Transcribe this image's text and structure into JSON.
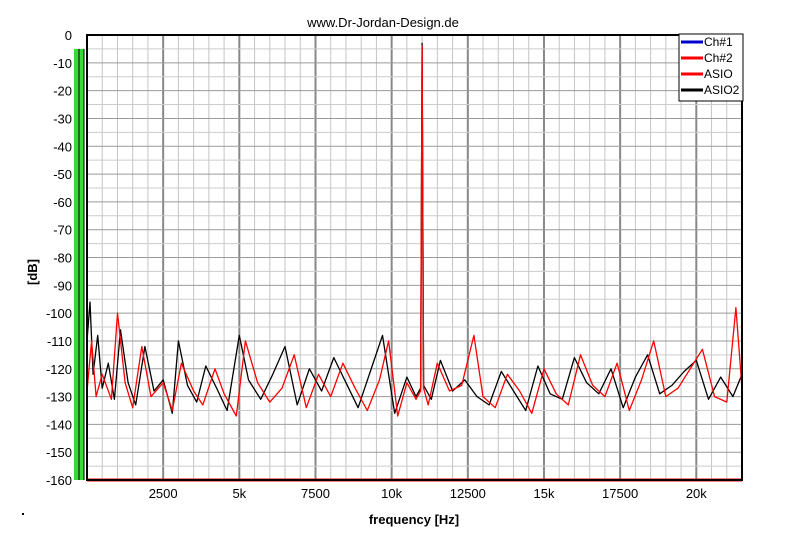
{
  "chart_data": {
    "type": "line",
    "title": "www.Dr-Jordan-Design.de",
    "xlabel": "frequency [Hz]",
    "ylabel": "[dB]",
    "xlim": [
      0,
      21500
    ],
    "ylim": [
      -160,
      0
    ],
    "x_ticks": [
      2500,
      5000,
      7500,
      10000,
      12500,
      15000,
      17500,
      20000
    ],
    "x_tick_labels": [
      "2500",
      "5k",
      "7500",
      "10k",
      "12500",
      "15k",
      "17500",
      "20k"
    ],
    "y_ticks": [
      0,
      -10,
      -20,
      -30,
      -40,
      -50,
      -60,
      -70,
      -80,
      -90,
      -100,
      -110,
      -120,
      -130,
      -140,
      -150,
      -160
    ],
    "y_tick_labels": [
      "0",
      "-10",
      "-20",
      "-30",
      "-40",
      "-50",
      "-60",
      "-70",
      "-80",
      "-90",
      "-100",
      "-110",
      "-120",
      "-130",
      "-140",
      "-150",
      "-160"
    ],
    "grid": true,
    "legend_position": "top-right",
    "level_meter": {
      "level_db": -5,
      "color": "#33dd33"
    },
    "series": [
      {
        "name": "Ch#1",
        "color": "#0000cc",
        "x": [
          0,
          21500
        ],
        "y": [
          -160,
          -160
        ]
      },
      {
        "name": "Ch#2",
        "color": "#ff0000",
        "x": [
          0,
          21500
        ],
        "y": [
          -160,
          -160
        ]
      },
      {
        "name": "ASIO",
        "color": "#ff0000",
        "x": [
          0,
          150,
          300,
          500,
          800,
          1000,
          1250,
          1500,
          1800,
          2100,
          2500,
          2800,
          3100,
          3500,
          3800,
          4200,
          4500,
          4900,
          5200,
          5600,
          6000,
          6400,
          6800,
          7200,
          7600,
          8000,
          8400,
          8800,
          9200,
          9600,
          9900,
          10200,
          10500,
          10800,
          10950,
          11000,
          11050,
          11200,
          11500,
          11900,
          12300,
          12700,
          13000,
          13400,
          13800,
          14200,
          14600,
          15000,
          15400,
          15800,
          16200,
          16600,
          17000,
          17400,
          17800,
          18200,
          18600,
          19000,
          19400,
          19800,
          20200,
          20600,
          21000,
          21300,
          21500
        ],
        "y": [
          -128,
          -110,
          -130,
          -122,
          -131,
          -100,
          -125,
          -134,
          -112,
          -130,
          -125,
          -135,
          -118,
          -128,
          -133,
          -120,
          -129,
          -137,
          -110,
          -125,
          -132,
          -127,
          -115,
          -134,
          -122,
          -130,
          -118,
          -127,
          -135,
          -124,
          -110,
          -137,
          -125,
          -131,
          -128,
          -4,
          -127,
          -133,
          -118,
          -128,
          -126,
          -108,
          -130,
          -134,
          -122,
          -128,
          -136,
          -120,
          -129,
          -133,
          -115,
          -126,
          -130,
          -118,
          -135,
          -124,
          -110,
          -130,
          -127,
          -120,
          -113,
          -130,
          -132,
          -98,
          -127
        ]
      },
      {
        "name": "ASIO2",
        "color": "#000000",
        "x": [
          0,
          100,
          200,
          350,
          500,
          700,
          900,
          1100,
          1350,
          1600,
          1900,
          2200,
          2500,
          2800,
          3000,
          3300,
          3600,
          3900,
          4300,
          4600,
          5000,
          5300,
          5700,
          6100,
          6500,
          6900,
          7300,
          7700,
          8100,
          8500,
          8900,
          9300,
          9700,
          10100,
          10500,
          10800,
          10950,
          11000,
          11050,
          11300,
          11600,
          12000,
          12400,
          12800,
          13200,
          13600,
          14000,
          14400,
          14800,
          15200,
          15600,
          16000,
          16400,
          16800,
          17200,
          17600,
          18000,
          18400,
          18800,
          19200,
          19600,
          20000,
          20400,
          20800,
          21200,
          21500
        ],
        "y": [
          -110,
          -96,
          -122,
          -108,
          -127,
          -118,
          -131,
          -106,
          -125,
          -133,
          -112,
          -128,
          -124,
          -136,
          -110,
          -126,
          -132,
          -119,
          -128,
          -135,
          -108,
          -124,
          -131,
          -122,
          -112,
          -133,
          -120,
          -128,
          -116,
          -125,
          -134,
          -121,
          -108,
          -136,
          -123,
          -130,
          -127,
          -3,
          -126,
          -131,
          -117,
          -128,
          -124,
          -130,
          -133,
          -121,
          -128,
          -135,
          -119,
          -129,
          -131,
          -116,
          -125,
          -129,
          -120,
          -134,
          -123,
          -115,
          -129,
          -126,
          -121,
          -117,
          -131,
          -123,
          -130,
          -122
        ]
      }
    ]
  }
}
